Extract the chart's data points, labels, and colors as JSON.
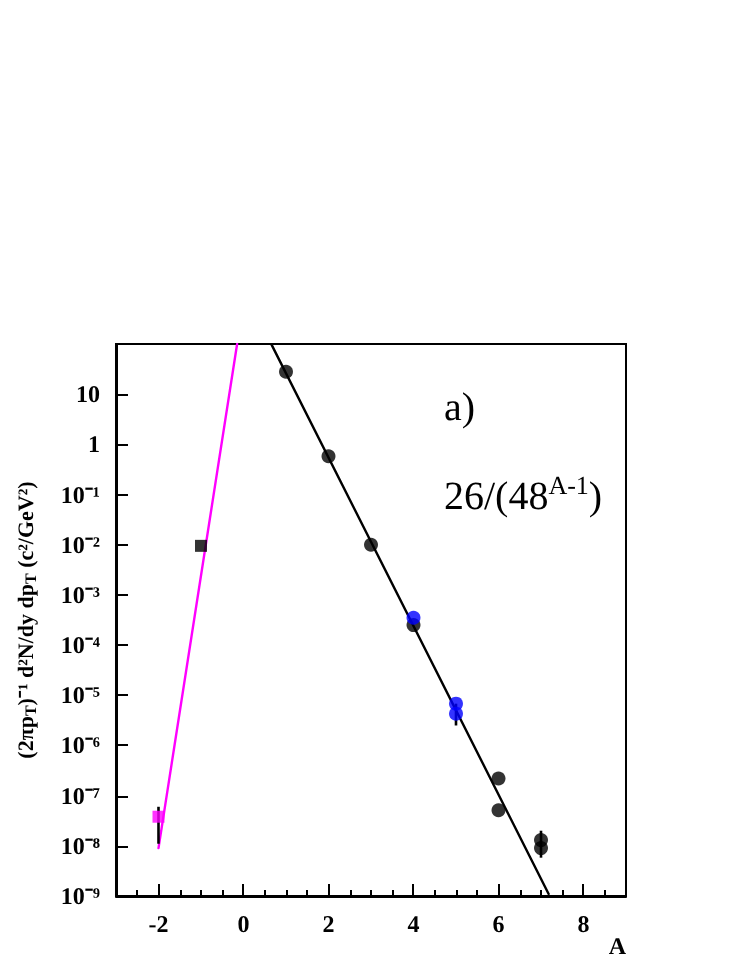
{
  "chart_data": {
    "type": "scatter",
    "xlabel": "A",
    "ylabel": "(2πp$_{T}$)⁻¹ d²N/dy dp$_{T}$ (c²/GeV²)",
    "annotations": [
      "a)",
      "26/(48$^{A-1}$)"
    ],
    "log": "y",
    "grid": false,
    "marker": "circle",
    "xlim": [
      -3,
      9
    ],
    "xticks": [
      -2,
      0,
      2,
      4,
      6,
      8
    ],
    "ylim": [
      1e-09,
      100
    ],
    "yticks": [
      10,
      1,
      {
        "value": 0.1,
        "label": "10⁻¹"
      },
      {
        "value": 0.01,
        "label": "10⁻²"
      },
      {
        "value": 0.001,
        "label": "10⁻³"
      },
      {
        "value": 0.0001,
        "label": "10⁻⁴"
      },
      {
        "value": 1e-05,
        "label": "10⁻⁵"
      },
      {
        "value": 1e-06,
        "label": "10⁻⁶"
      },
      {
        "value": 1e-07,
        "label": "10⁻⁷"
      },
      {
        "value": 1e-08,
        "label": "10⁻⁸"
      },
      {
        "value": 1e-09,
        "label": "10⁻⁹"
      }
    ],
    "series": [
      {
        "color": "#ff00ff",
        "marker": "square",
        "x": [
          -2
        ],
        "values": [
          3.8e-08
        ],
        "errors": [
          [
            1.1e-08,
            6e-08
          ]
        ]
      },
      {
        "color": "#000000",
        "marker": "square",
        "x": [
          -1
        ],
        "values": [
          0.0095
        ]
      },
      {
        "color": "#000000",
        "x": [
          1,
          2,
          3,
          4,
          6,
          6,
          7,
          7
        ],
        "values": [
          28,
          0.58,
          0.01,
          0.00025,
          2.2e-07,
          5.1e-08,
          1.3e-08,
          9e-09
        ],
        "errors": [
          null,
          null,
          null,
          null,
          null,
          null,
          null,
          [
            5.8e-09,
            2e-08
          ]
        ]
      },
      {
        "color": "#0000ff",
        "x": [
          4,
          5,
          5
        ],
        "values": [
          0.00035,
          6.8e-06,
          4.3e-06
        ],
        "errors": [
          null,
          null,
          [
            2.5e-06,
            6.8e-06
          ]
        ]
      },
      {
        "type": "line",
        "color": "#000000",
        "marker": "none",
        "x": [
          0.66,
          7.18
        ],
        "values": [
          97,
          1.1e-09
        ]
      },
      {
        "type": "line",
        "color": "#ff00ff",
        "marker": "none",
        "x": [
          -2,
          -0.15
        ],
        "values": [
          9e-09,
          100
        ]
      }
    ]
  }
}
